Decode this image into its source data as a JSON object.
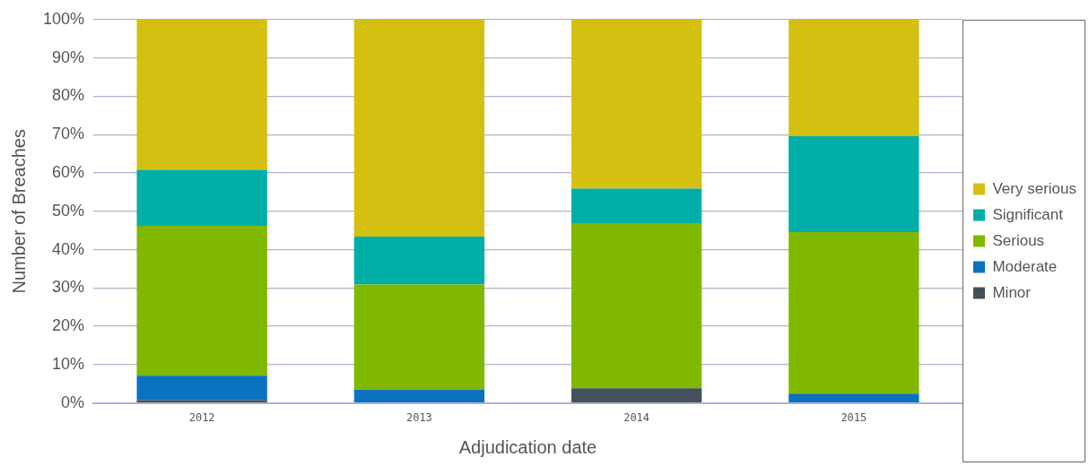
{
  "chart_data": {
    "type": "bar",
    "stacked": true,
    "xlabel": "Adjudication date",
    "ylabel": "Number of Breaches",
    "categories": [
      "2012",
      "2013",
      "2014",
      "2015"
    ],
    "series": [
      {
        "name": "Minor",
        "color": "#44515c",
        "values": [
          0.7,
          0,
          3.8,
          0
        ]
      },
      {
        "name": "Moderate",
        "color": "#0a72c0",
        "values": [
          6.4,
          3.5,
          0,
          2.4
        ]
      },
      {
        "name": "Serious",
        "color": "#80b800",
        "values": [
          39.1,
          27.4,
          43.1,
          42.2
        ]
      },
      {
        "name": "Significant",
        "color": "#00aea8",
        "values": [
          14.6,
          12.5,
          9.0,
          25.0
        ]
      },
      {
        "name": "Very serious",
        "color": "#d4c011",
        "values": [
          39.2,
          56.6,
          44.1,
          30.4
        ]
      }
    ],
    "ylim": [
      0,
      100
    ],
    "yticks": [
      {
        "value": 0,
        "label": "0%"
      },
      {
        "value": 10,
        "label": "10%"
      },
      {
        "value": 20,
        "label": "20%"
      },
      {
        "value": 30,
        "label": "30%"
      },
      {
        "value": 40,
        "label": "40%"
      },
      {
        "value": 50,
        "label": "50%"
      },
      {
        "value": 60,
        "label": "60%"
      },
      {
        "value": 70,
        "label": "70%"
      },
      {
        "value": 80,
        "label": "80%"
      },
      {
        "value": 90,
        "label": "90%"
      },
      {
        "value": 100,
        "label": "100%"
      }
    ],
    "grid": "y",
    "legend": "right"
  }
}
